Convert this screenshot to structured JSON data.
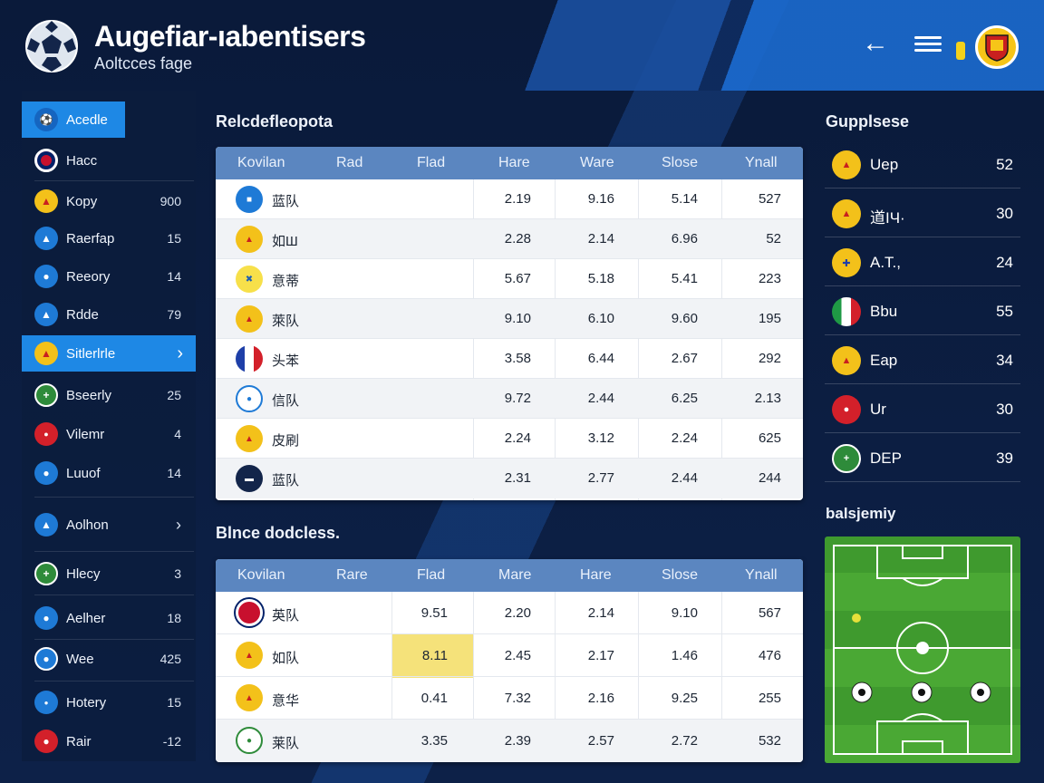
{
  "header": {
    "title": "Augefiar-ıabentisers",
    "subtitle": "Aoltcces fage",
    "back_icon": "arrow-left-icon",
    "menu_icon": "hamburger-menu-icon"
  },
  "sidebar": {
    "items": [
      {
        "label": "Acedle",
        "count": "",
        "icon": "soccer-ball-icon",
        "active": true
      },
      {
        "label": "Hacc",
        "count": "",
        "icon": "union-jack-flag-icon"
      },
      {
        "label": "Kopy",
        "count": "900",
        "icon": "club-crest-icon"
      },
      {
        "label": "Raerfap",
        "count": "15",
        "icon": "club-crest-icon"
      },
      {
        "label": "Reeory",
        "count": "14",
        "icon": "club-crest-icon"
      },
      {
        "label": "Rdde",
        "count": "79",
        "icon": "club-crest-icon"
      },
      {
        "label": "Sitlerlrle",
        "count": "",
        "icon": "club-crest-icon",
        "active": true
      },
      {
        "label": "Bseerly",
        "count": "25",
        "icon": "club-crest-icon"
      },
      {
        "label": "Vilemr",
        "count": "4",
        "icon": "club-crest-icon"
      },
      {
        "label": "Luuof",
        "count": "14",
        "icon": "club-crest-icon"
      },
      {
        "label": "Aolhon",
        "count": "",
        "icon": "club-crest-icon"
      },
      {
        "label": "Hlecy",
        "count": "3",
        "icon": "club-crest-icon"
      },
      {
        "label": "Aelher",
        "count": "18",
        "icon": "club-crest-icon"
      },
      {
        "label": "Wee",
        "count": "425",
        "icon": "club-crest-icon"
      },
      {
        "label": "Hotery",
        "count": "15",
        "icon": "club-crest-icon"
      },
      {
        "label": "Rair",
        "count": "-12",
        "icon": "club-crest-icon"
      }
    ]
  },
  "table1": {
    "title": "Relcdefleopota",
    "columns": [
      "Kovilan",
      "Rad",
      "Flad",
      "Hare",
      "Ware",
      "Slose",
      "Ynall"
    ],
    "rows": [
      {
        "name": "蓝队",
        "vals": [
          "",
          "2.19",
          "9.16",
          "5.14",
          "527"
        ]
      },
      {
        "name": "如Ш",
        "vals": [
          "",
          "2.28",
          "2.14",
          "6.96",
          "52"
        ]
      },
      {
        "name": "意蒂",
        "vals": [
          "",
          "5.67",
          "5.18",
          "5.41",
          "223"
        ]
      },
      {
        "name": "萊队",
        "vals": [
          "",
          "9.10",
          "6.10",
          "9.60",
          "195"
        ]
      },
      {
        "name": "头苯",
        "vals": [
          "",
          "3.58",
          "6.44",
          "2.67",
          "292"
        ]
      },
      {
        "name": "信队",
        "vals": [
          "",
          "9.72",
          "2.44",
          "6.25",
          "2.13"
        ]
      },
      {
        "name": "皮刷",
        "vals": [
          "",
          "2.24",
          "3.12",
          "2.24",
          "625"
        ]
      },
      {
        "name": "蓝队",
        "vals": [
          "",
          "2.31",
          "2.77",
          "2.44",
          "244"
        ]
      }
    ]
  },
  "table2": {
    "title": "Blnce dodcless.",
    "columns": [
      "Kovilan",
      "Rare",
      "Flad",
      "Mare",
      "Hare",
      "Slose",
      "Ynall"
    ],
    "rows": [
      {
        "name": "英队",
        "vals": [
          "9.51",
          "2.20",
          "2.14",
          "9.10",
          "567"
        ]
      },
      {
        "name": "如队",
        "vals": [
          "8.11",
          "2.45",
          "2.17",
          "1.46",
          "476"
        ]
      },
      {
        "name": "意华",
        "vals": [
          "0.41",
          "7.32",
          "2.16",
          "9.25",
          "255"
        ]
      },
      {
        "name": "莱队",
        "vals": [
          "3.35",
          "2.39",
          "2.57",
          "2.72",
          "532"
        ]
      }
    ]
  },
  "right": {
    "title": "Gupplsese",
    "items": [
      {
        "label": "Uep",
        "val": "52"
      },
      {
        "label": "道IЧ·",
        "val": "30"
      },
      {
        "label": "A.T.,",
        "val": "24"
      },
      {
        "label": "Bbu",
        "val": "55"
      },
      {
        "label": "Eap",
        "val": "34"
      },
      {
        "label": "Ur",
        "val": "30"
      },
      {
        "label": "DEP",
        "val": "39"
      }
    ],
    "pitch_title": "balsjemiy"
  },
  "colors": {
    "accent": "#1e88e5",
    "table_header": "#5b86c0",
    "highlight": "#f5e27a",
    "pitch_green": "#3f9a2e"
  }
}
